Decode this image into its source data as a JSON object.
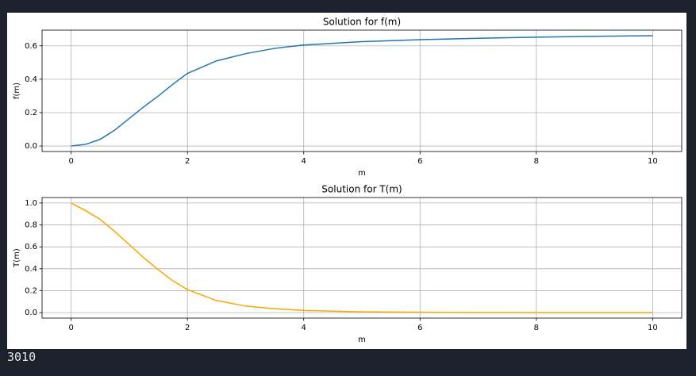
{
  "chart_data": [
    {
      "type": "line",
      "title": "Solution for f(m)",
      "x_label": "m",
      "y_label": "f(m)",
      "x": [
        0,
        0.25,
        0.5,
        0.75,
        1,
        1.25,
        1.5,
        1.75,
        2,
        2.5,
        3,
        3.5,
        4,
        5,
        6,
        7,
        8,
        9,
        10
      ],
      "series": [
        {
          "color": "#1f77b4",
          "values": [
            0,
            0.01,
            0.04,
            0.095,
            0.165,
            0.235,
            0.3,
            0.37,
            0.435,
            0.51,
            0.553,
            0.585,
            0.605,
            0.625,
            0.637,
            0.645,
            0.652,
            0.657,
            0.661
          ]
        }
      ],
      "xlim": [
        -0.5,
        10.5
      ],
      "xticks": [
        0,
        2,
        4,
        6,
        8,
        10
      ],
      "ylim": [
        -0.033,
        0.694
      ],
      "yticks": [
        {
          "value": 0,
          "label": "0.0"
        },
        0.2,
        0.4,
        0.6
      ],
      "grid": true
    },
    {
      "type": "line",
      "title": "Solution for T(m)",
      "x_label": "m",
      "y_label": "T(m)",
      "x": [
        0,
        0.25,
        0.5,
        0.75,
        1,
        1.25,
        1.5,
        1.75,
        2,
        2.5,
        3,
        3.5,
        4,
        5,
        6,
        7,
        8,
        9,
        10
      ],
      "series": [
        {
          "color": "#ffa500",
          "values": [
            1,
            0.93,
            0.85,
            0.74,
            0.62,
            0.5,
            0.39,
            0.29,
            0.21,
            0.11,
            0.06,
            0.035,
            0.02,
            0.007,
            0.003,
            0.001,
            0,
            0,
            0
          ]
        }
      ],
      "xlim": [
        -0.5,
        10.5
      ],
      "xticks": [
        0,
        2,
        4,
        6,
        8,
        10
      ],
      "ylim": [
        -0.05,
        1.05
      ],
      "yticks": [
        {
          "value": 0,
          "label": "0.0"
        },
        0.2,
        0.4,
        0.6,
        0.8,
        {
          "value": 1,
          "label": "1.0"
        }
      ],
      "grid": true
    }
  ],
  "output_text": "3010"
}
